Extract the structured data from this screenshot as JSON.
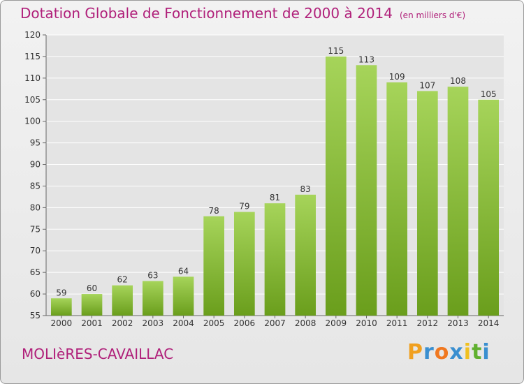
{
  "chart_data": {
    "type": "bar",
    "title": "Dotation Globale de Fonctionnement de 2000 à 2014",
    "subtitle": "(en milliers d'€)",
    "categories": [
      "2000",
      "2001",
      "2002",
      "2003",
      "2004",
      "2005",
      "2006",
      "2007",
      "2008",
      "2009",
      "2010",
      "2011",
      "2012",
      "2013",
      "2014"
    ],
    "values": [
      59,
      60,
      62,
      63,
      64,
      78,
      79,
      81,
      83,
      115,
      113,
      109,
      107,
      108,
      105
    ],
    "ylim": [
      55,
      120
    ],
    "yticks": [
      55,
      60,
      65,
      70,
      75,
      80,
      85,
      90,
      95,
      100,
      105,
      110,
      115,
      120
    ],
    "xlabel": "",
    "ylabel": "",
    "grid": true,
    "legend": "none",
    "bar_color_top": "#a6d45a",
    "bar_color_bottom": "#6a9e1c",
    "grid_color": "#ffffff"
  },
  "commune": "MOLIèRES-CAVAILLAC",
  "logo": {
    "letters": [
      "P",
      "r",
      "o",
      "x",
      "i",
      "t",
      "i"
    ],
    "colors": [
      "#f0a020",
      "#3a8fd0",
      "#f07820",
      "#3a8fd0",
      "#f0c020",
      "#60b030",
      "#3a8fd0"
    ]
  }
}
